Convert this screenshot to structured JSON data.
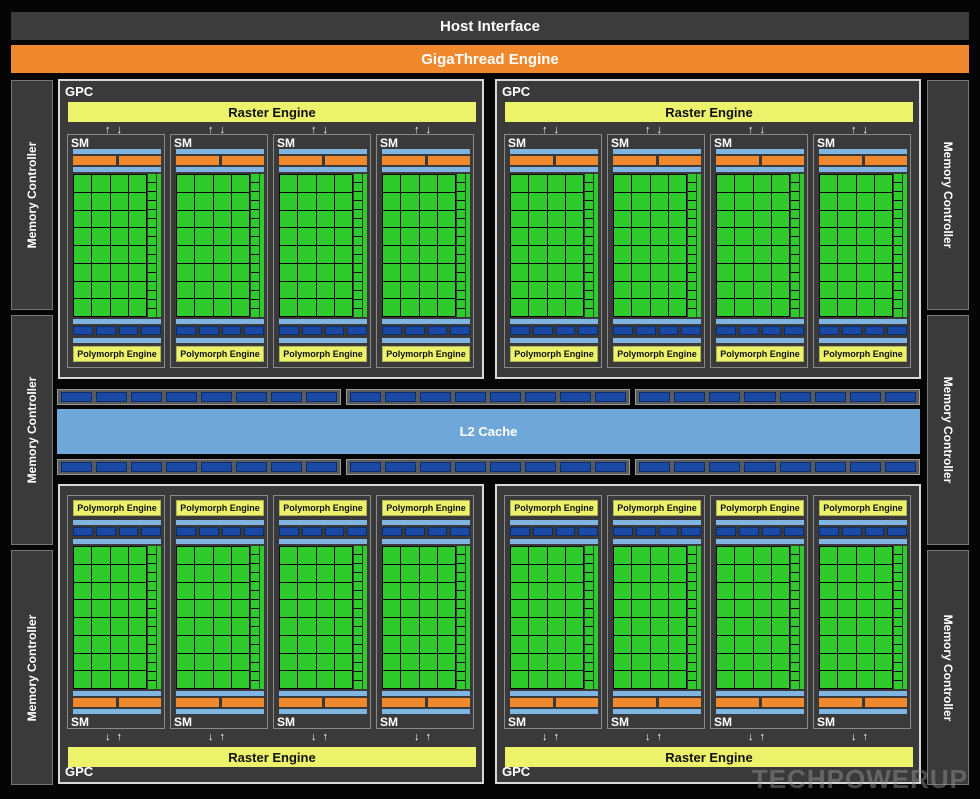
{
  "host_interface": "Host Interface",
  "gigathread_engine": "GigaThread Engine",
  "memory_controller_label": "Memory Controller",
  "memory_controllers": {
    "left": [
      "Memory Controller",
      "Memory Controller",
      "Memory Controller"
    ],
    "right": [
      "Memory Controller",
      "Memory Controller",
      "Memory Controller"
    ]
  },
  "l2_cache": "L2 Cache",
  "gpc_label": "GPC",
  "raster_engine_label": "Raster Engine",
  "sm_label": "SM",
  "polymorph_engine_label": "Polymorph Engine",
  "gpc_count": 4,
  "sm_per_gpc": 4,
  "watermark": "TECHPOWERUP",
  "colors": {
    "background": "#050505",
    "panel": "#3a3a3a",
    "gigathread": "#f0892e",
    "raster": "#ecf26a",
    "core": "#2fcb2c",
    "cache": "#6fa8d8",
    "unit_blue": "#1a49a6",
    "orange_unit": "#f0892e"
  }
}
